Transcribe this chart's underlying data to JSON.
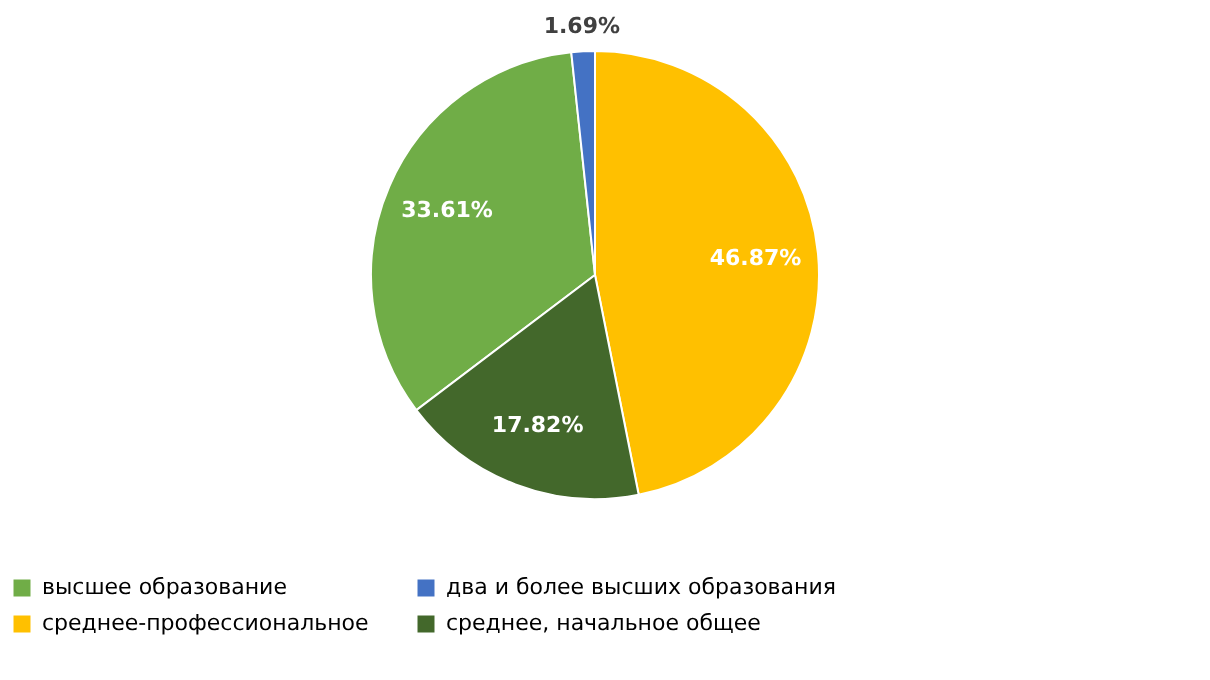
{
  "chart_data": {
    "type": "pie",
    "categories": [
      "высшее образование",
      "два и более высших образования",
      "среднее-профессиональное",
      "среднее, начальное общее"
    ],
    "values": [
      33.61,
      1.69,
      46.87,
      17.82
    ],
    "colors": [
      "#70ad47",
      "#4472c4",
      "#ffc000",
      "#43682b"
    ],
    "value_labels": [
      "33.61%",
      "1.69%",
      "46.87%",
      "17.82%"
    ],
    "legend": "bottom"
  }
}
